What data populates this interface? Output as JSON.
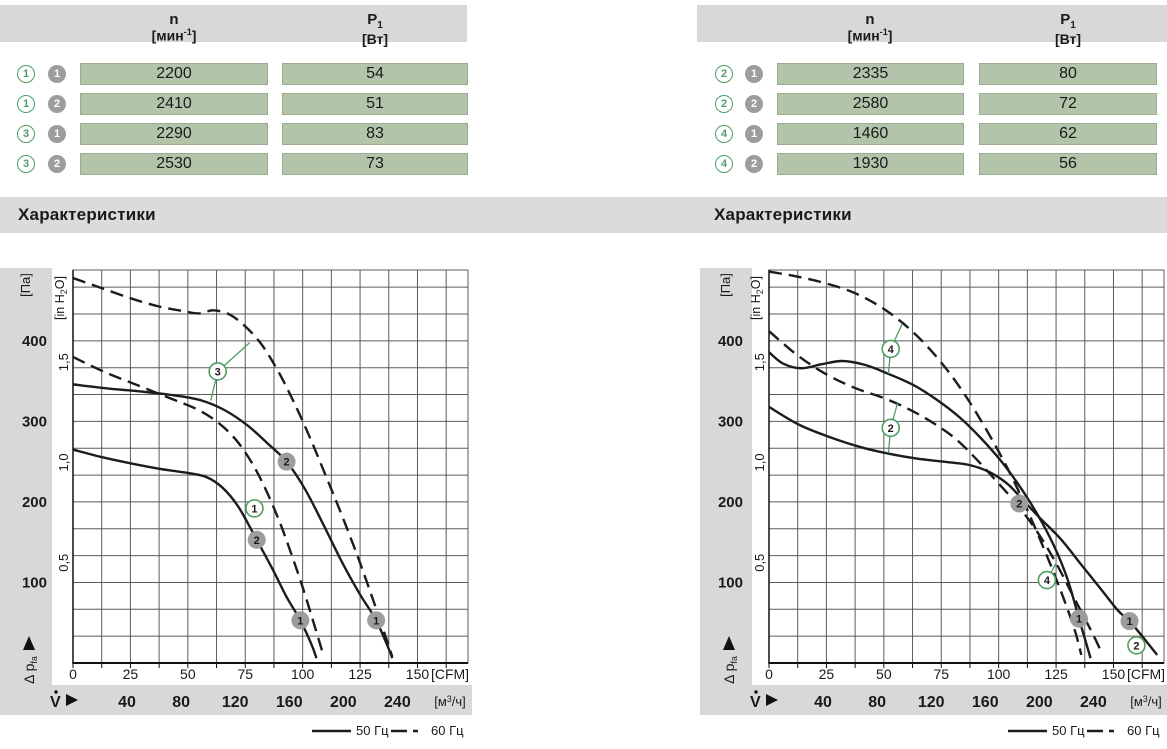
{
  "colors": {
    "green_cell": "#b2c4aa",
    "gray_bar": "#d8d8d8",
    "green_accent": "#4f9e63",
    "gray_marker": "#9d9d9d",
    "curve": "#1c1c1c",
    "grid": "#5c5c5c"
  },
  "tables": [
    {
      "header": {
        "n_title": "n",
        "n_unit_pre": "[мин",
        "n_unit_sup": "-1",
        "n_unit_post": "]",
        "p_title_main": "P",
        "p_title_sub": "1",
        "p_unit": "[Вт]"
      },
      "rows": [
        {
          "curve": "1",
          "speed": "1",
          "n": "2200",
          "p1": "54"
        },
        {
          "curve": "1",
          "speed": "2",
          "n": "2410",
          "p1": "51"
        },
        {
          "curve": "3",
          "speed": "1",
          "n": "2290",
          "p1": "83"
        },
        {
          "curve": "3",
          "speed": "2",
          "n": "2530",
          "p1": "73"
        }
      ]
    },
    {
      "header": {
        "n_title": "n",
        "n_unit_pre": "[мин",
        "n_unit_sup": "-1",
        "n_unit_post": "]",
        "p_title_main": "P",
        "p_title_sub": "1",
        "p_unit": "[Вт]"
      },
      "rows": [
        {
          "curve": "2",
          "speed": "1",
          "n": "2335",
          "p1": "80"
        },
        {
          "curve": "2",
          "speed": "2",
          "n": "2580",
          "p1": "72"
        },
        {
          "curve": "4",
          "speed": "1",
          "n": "1460",
          "p1": "62"
        },
        {
          "curve": "4",
          "speed": "2",
          "n": "1930",
          "p1": "56"
        }
      ]
    }
  ],
  "section": {
    "title_left": "Характеристики",
    "title_right": "Характеристики"
  },
  "legend": {
    "solid_label": "50 Гц",
    "dashed_label": "60 Гц"
  },
  "chart_data": [
    {
      "type": "line",
      "title": "Характеристики (левый график)",
      "x_axis": {
        "ticks_cfm": [
          0,
          25,
          50,
          75,
          100,
          125,
          150
        ],
        "unit_cfm": "[CFM]",
        "labels_m3h": [
          40,
          80,
          120,
          160,
          200,
          240
        ],
        "unit_m3h_pre": "[м",
        "unit_m3h_sup": "3",
        "unit_m3h_post": "/ч]",
        "flow_symbol": "V",
        "xlim_cfm": [
          0,
          172
        ]
      },
      "y_axis": {
        "ticks_pa": [
          100,
          200,
          300,
          400
        ],
        "unit_pa": "[Па]",
        "ticks_inh2o": [
          {
            "v": "0,5",
            "pa": 124.5
          },
          {
            "v": "1,0",
            "pa": 249
          },
          {
            "v": "1,5",
            "pa": 373.5
          }
        ],
        "unit_inh2o_pre": "[in H",
        "unit_inh2o_sub": "2",
        "unit_inh2o_post": "O]",
        "pressure_label": "Δ p",
        "pressure_label_sub": "fa",
        "ylim_pa": [
          0,
          488
        ]
      },
      "legend": [
        {
          "label": "50 Гц",
          "style": "solid"
        },
        {
          "label": "60 Гц",
          "style": "dashed"
        }
      ],
      "series": [
        {
          "name": "curve-3-60hz",
          "hz": 60,
          "style": "dashed",
          "points": [
            [
              0,
              478
            ],
            [
              12,
              466
            ],
            [
              25,
              453
            ],
            [
              37,
              443
            ],
            [
              48,
              437
            ],
            [
              55,
              434
            ],
            [
              61,
              438
            ],
            [
              68,
              433
            ],
            [
              75,
              418
            ],
            [
              82,
              396
            ],
            [
              89,
              364
            ],
            [
              96,
              325
            ],
            [
              103,
              281
            ],
            [
              110,
              233
            ],
            [
              117,
              184
            ],
            [
              124,
              132
            ],
            [
              130,
              84
            ],
            [
              136,
              34
            ],
            [
              139,
              8
            ]
          ]
        },
        {
          "name": "curve-3-50hz",
          "hz": 50,
          "style": "solid",
          "points": [
            [
              0,
              346
            ],
            [
              15,
              341
            ],
            [
              30,
              337
            ],
            [
              45,
              332
            ],
            [
              56,
              326
            ],
            [
              66,
              314
            ],
            [
              76,
              295
            ],
            [
              85,
              272
            ],
            [
              93,
              250
            ],
            [
              101,
              216
            ],
            [
              109,
              172
            ],
            [
              117,
              126
            ],
            [
              125,
              85
            ],
            [
              132,
              53
            ],
            [
              138,
              14
            ],
            [
              139,
              6
            ]
          ]
        },
        {
          "name": "curve-1-60hz",
          "hz": 60,
          "style": "dashed",
          "points": [
            [
              0,
              380
            ],
            [
              14,
              361
            ],
            [
              28,
              345
            ],
            [
              42,
              329
            ],
            [
              54,
              315
            ],
            [
              63,
              299
            ],
            [
              71,
              277
            ],
            [
              78,
              248
            ],
            [
              84,
              215
            ],
            [
              90,
              175
            ],
            [
              95,
              136
            ],
            [
              100,
              94
            ],
            [
              105,
              48
            ],
            [
              109,
              10
            ]
          ]
        },
        {
          "name": "curve-1-50hz",
          "hz": 50,
          "style": "solid",
          "points": [
            [
              0,
              265
            ],
            [
              12,
              256
            ],
            [
              25,
              248
            ],
            [
              38,
              241
            ],
            [
              50,
              236
            ],
            [
              58,
              231
            ],
            [
              65,
              218
            ],
            [
              72,
              194
            ],
            [
              80,
              153
            ],
            [
              87,
              116
            ],
            [
              93,
              82
            ],
            [
              99,
              53
            ],
            [
              104,
              22
            ],
            [
              106,
              6
            ]
          ]
        }
      ],
      "markers": [
        {
          "kind": "curve",
          "label": "3",
          "cfm": 63,
          "pa": 362,
          "connectors": [
            [
              77,
              398
            ],
            [
              60,
              326
            ]
          ]
        },
        {
          "kind": "curve",
          "label": "1",
          "cfm": 79,
          "pa": 192,
          "connectors": []
        },
        {
          "kind": "speed",
          "label": "2",
          "cfm": 93,
          "pa": 250
        },
        {
          "kind": "speed",
          "label": "2",
          "cfm": 80,
          "pa": 153
        },
        {
          "kind": "speed",
          "label": "1",
          "cfm": 99,
          "pa": 53
        },
        {
          "kind": "speed",
          "label": "1",
          "cfm": 132,
          "pa": 53
        }
      ]
    },
    {
      "type": "line",
      "title": "Характеристики (правый график)",
      "x_axis": {
        "ticks_cfm": [
          0,
          25,
          50,
          75,
          100,
          125,
          150
        ],
        "unit_cfm": "[CFM]",
        "labels_m3h": [
          40,
          80,
          120,
          160,
          200,
          240
        ],
        "unit_m3h_pre": "[м",
        "unit_m3h_sup": "3",
        "unit_m3h_post": "/ч]",
        "flow_symbol": "V",
        "xlim_cfm": [
          0,
          172
        ]
      },
      "y_axis": {
        "ticks_pa": [
          100,
          200,
          300,
          400
        ],
        "unit_pa": "[Па]",
        "ticks_inh2o": [
          {
            "v": "0,5",
            "pa": 124.5
          },
          {
            "v": "1,0",
            "pa": 249
          },
          {
            "v": "1,5",
            "pa": 373.5
          }
        ],
        "unit_inh2o_pre": "[in H",
        "unit_inh2o_sub": "2",
        "unit_inh2o_post": "O]",
        "pressure_label": "Δ p",
        "pressure_label_sub": "fa",
        "ylim_pa": [
          0,
          488
        ]
      },
      "legend": [
        {
          "label": "50 Гц",
          "style": "solid"
        },
        {
          "label": "60 Гц",
          "style": "dashed"
        }
      ],
      "series": [
        {
          "name": "curve-4-60hz",
          "hz": 60,
          "style": "dashed",
          "points": [
            [
              0,
              486
            ],
            [
              12,
              480
            ],
            [
              24,
              472
            ],
            [
              36,
              461
            ],
            [
              47,
              445
            ],
            [
              57,
              425
            ],
            [
              67,
              399
            ],
            [
              77,
              366
            ],
            [
              86,
              330
            ],
            [
              95,
              288
            ],
            [
              104,
              241
            ],
            [
              112,
              193
            ],
            [
              120,
              140
            ],
            [
              127,
              90
            ],
            [
              133,
              42
            ],
            [
              136,
              10
            ]
          ]
        },
        {
          "name": "curve-4-50hz",
          "hz": 50,
          "style": "solid",
          "points": [
            [
              0,
              386
            ],
            [
              6,
              372
            ],
            [
              14,
              366
            ],
            [
              23,
              371
            ],
            [
              32,
              375
            ],
            [
              42,
              370
            ],
            [
              52,
              359
            ],
            [
              63,
              345
            ],
            [
              73,
              327
            ],
            [
              83,
              305
            ],
            [
              92,
              280
            ],
            [
              101,
              251
            ],
            [
              109,
              220
            ],
            [
              117,
              184
            ],
            [
              124,
              146
            ],
            [
              130,
              104
            ],
            [
              135,
              55
            ],
            [
              139,
              16
            ],
            [
              140,
              6
            ]
          ]
        },
        {
          "name": "curve-2-60hz",
          "hz": 60,
          "style": "dashed",
          "points": [
            [
              0,
              412
            ],
            [
              12,
              383
            ],
            [
              24,
              360
            ],
            [
              37,
              342
            ],
            [
              50,
              329
            ],
            [
              61,
              315
            ],
            [
              71,
              299
            ],
            [
              81,
              279
            ],
            [
              90,
              254
            ],
            [
              99,
              226
            ],
            [
              108,
              197
            ],
            [
              117,
              162
            ],
            [
              125,
              124
            ],
            [
              133,
              80
            ],
            [
              141,
              36
            ],
            [
              145,
              12
            ]
          ]
        },
        {
          "name": "curve-2-50hz",
          "hz": 50,
          "style": "solid",
          "points": [
            [
              0,
              318
            ],
            [
              13,
              296
            ],
            [
              26,
              281
            ],
            [
              40,
              268
            ],
            [
              52,
              260
            ],
            [
              64,
              254
            ],
            [
              76,
              250
            ],
            [
              87,
              246
            ],
            [
              96,
              237
            ],
            [
              104,
              222
            ],
            [
              111,
              201
            ],
            [
              118,
              180
            ],
            [
              127,
              154
            ],
            [
              136,
              122
            ],
            [
              145,
              90
            ],
            [
              152,
              65
            ],
            [
              157,
              52
            ],
            [
              164,
              28
            ],
            [
              169,
              10
            ]
          ]
        }
      ],
      "markers": [
        {
          "kind": "curve",
          "label": "4",
          "cfm": 53,
          "pa": 390,
          "connectors": [
            [
              58,
              421
            ],
            [
              52,
              359
            ]
          ]
        },
        {
          "kind": "curve",
          "label": "2",
          "cfm": 53,
          "pa": 292,
          "connectors": [
            [
              56,
              323
            ],
            [
              52,
              261
            ]
          ]
        },
        {
          "kind": "speed",
          "label": "2",
          "cfm": 109,
          "pa": 198
        },
        {
          "kind": "curve",
          "label": "4",
          "cfm": 121,
          "pa": 103,
          "connectors": [
            [
              125,
              124
            ]
          ]
        },
        {
          "kind": "speed",
          "label": "1",
          "cfm": 135,
          "pa": 55
        },
        {
          "kind": "speed",
          "label": "1",
          "cfm": 157,
          "pa": 52
        },
        {
          "kind": "curve",
          "label": "2",
          "cfm": 160,
          "pa": 22,
          "connectors": []
        }
      ]
    }
  ]
}
